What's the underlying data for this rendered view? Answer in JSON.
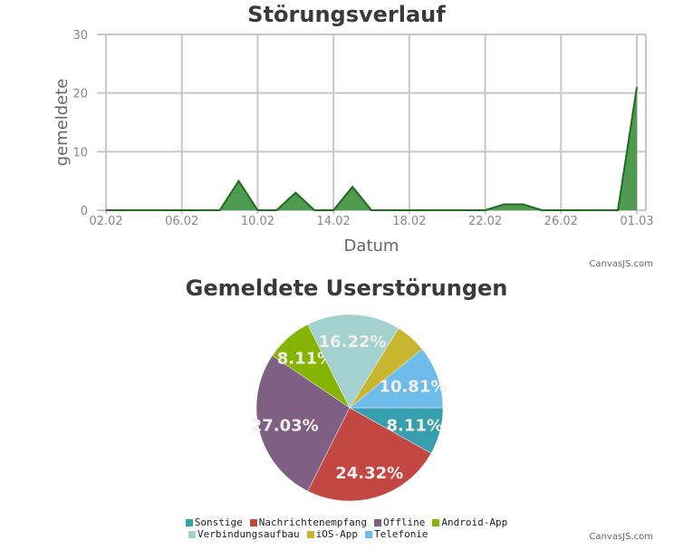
{
  "colors": {
    "area_fill": "#4e9a4f",
    "area_line": "#1f6b20",
    "grid": "#c8c8c8",
    "axis_text": "#888888"
  },
  "chart_data": [
    {
      "type": "area",
      "title": "Störungsverlauf",
      "xlabel": "Datum",
      "ylabel": "gemeldete",
      "ylim": [
        0,
        30
      ],
      "y_ticks": [
        "0",
        "10",
        "20",
        "30"
      ],
      "x_tick_labels": [
        "02.02",
        "06.02",
        "10.02",
        "14.02",
        "18.02",
        "22.02",
        "26.02",
        "01.03"
      ],
      "grid": true,
      "x": [
        "2024-02-02",
        "2024-02-03",
        "2024-02-04",
        "2024-02-05",
        "2024-02-06",
        "2024-02-07",
        "2024-02-08",
        "2024-02-09",
        "2024-02-10",
        "2024-02-11",
        "2024-02-12",
        "2024-02-13",
        "2024-02-14",
        "2024-02-15",
        "2024-02-16",
        "2024-02-17",
        "2024-02-18",
        "2024-02-19",
        "2024-02-20",
        "2024-02-21",
        "2024-02-22",
        "2024-02-23",
        "2024-02-24",
        "2024-02-25",
        "2024-02-26",
        "2024-02-27",
        "2024-02-28",
        "2024-02-29",
        "2024-03-01"
      ],
      "values": [
        0,
        0,
        0,
        0,
        0,
        0,
        0,
        5,
        0,
        0,
        3,
        0,
        0,
        4,
        0,
        0,
        0,
        0,
        0,
        0,
        0,
        1,
        1,
        0,
        0,
        0,
        0,
        0,
        21
      ],
      "credit": "CanvasJS.com"
    },
    {
      "type": "pie",
      "title": "Gemeldete Userstörungen",
      "slices": [
        {
          "name": "Sonstige",
          "value": 8.11,
          "label": "8.11%",
          "color": "#369ead"
        },
        {
          "name": "Nachrichtenempfang",
          "value": 24.32,
          "label": "24.32%",
          "color": "#c24642"
        },
        {
          "name": "Offline",
          "value": 27.03,
          "label": "27.03%",
          "color": "#7f6084"
        },
        {
          "name": "Android-App",
          "value": 8.11,
          "label": "8.11%",
          "color": "#86b402"
        },
        {
          "name": "Verbindungsaufbau",
          "value": 16.22,
          "label": "16.22%",
          "color": "#a2d1cf"
        },
        {
          "name": "iOS-App",
          "value": 5.41,
          "label": "",
          "color": "#c8b631"
        },
        {
          "name": "Telefonie",
          "value": 10.81,
          "label": "10.81%",
          "color": "#6dbceb"
        }
      ],
      "legend_placement": "bottom",
      "credit": "CanvasJS.com"
    }
  ]
}
